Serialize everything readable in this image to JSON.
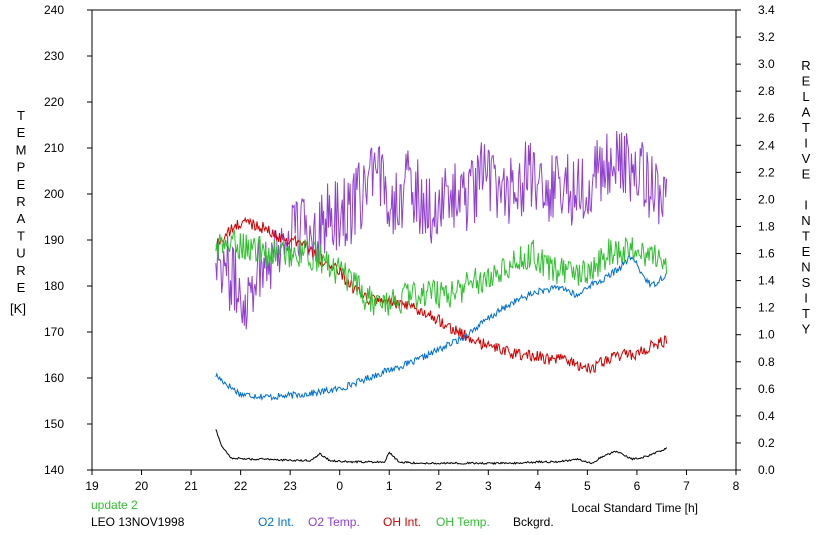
{
  "chart_data": {
    "type": "line",
    "left_axis_label": "TEMPERATURE",
    "left_axis_unit": "[K]",
    "right_axis_label": "RELATIVE INTENSITY",
    "xlabel": "Local Standard Time [h]",
    "x_ticks": [
      "19",
      "20",
      "21",
      "22",
      "23",
      "0",
      "1",
      "2",
      "3",
      "4",
      "5",
      "6",
      "7",
      "8"
    ],
    "y_left_ticks": [
      "140",
      "150",
      "160",
      "170",
      "180",
      "190",
      "200",
      "210",
      "220",
      "230",
      "240"
    ],
    "y_right_ticks": [
      "0.0",
      "0.2",
      "0.4",
      "0.6",
      "0.8",
      "1.0",
      "1.2",
      "1.4",
      "1.6",
      "1.8",
      "2.0",
      "2.2",
      "2.4",
      "2.6",
      "2.8",
      "3.0",
      "3.2",
      "3.4"
    ],
    "xlim": [
      19,
      32
    ],
    "ylim_left": [
      140,
      240
    ],
    "ylim_right": [
      0,
      3.4
    ],
    "grid": false,
    "update_note": "update 2",
    "station": "LEO 13NOV1998",
    "series": [
      {
        "name": "O2 Int.",
        "axis": "right",
        "color": "#0070d0",
        "x": [
          21.5,
          21.7,
          22.0,
          22.3,
          22.6,
          23.0,
          23.5,
          24.0,
          24.5,
          25.0,
          25.5,
          26.0,
          26.5,
          27.0,
          27.5,
          28.0,
          28.5,
          28.8,
          29.0,
          29.3,
          29.6,
          29.9,
          30.1,
          30.3,
          30.6
        ],
        "y": [
          0.7,
          0.64,
          0.56,
          0.55,
          0.54,
          0.55,
          0.57,
          0.6,
          0.67,
          0.74,
          0.8,
          0.89,
          0.98,
          1.12,
          1.24,
          1.32,
          1.35,
          1.28,
          1.36,
          1.4,
          1.48,
          1.58,
          1.45,
          1.36,
          1.45
        ]
      },
      {
        "name": "O2 Temp.",
        "axis": "left",
        "color": "#9040d0",
        "x": [
          21.5,
          21.7,
          21.9,
          22.1,
          22.3,
          22.6,
          22.9,
          23.1,
          23.4,
          23.7,
          24.0,
          24.3,
          24.5,
          24.8,
          25.1,
          25.4,
          25.7,
          26.0,
          26.3,
          26.6,
          26.9,
          27.2,
          27.5,
          27.8,
          28.1,
          28.4,
          28.7,
          29.0,
          29.3,
          29.6,
          29.9,
          30.2,
          30.5,
          30.6
        ],
        "y": [
          188,
          184,
          180,
          177,
          183,
          187,
          190,
          193,
          192,
          194,
          196,
          197,
          202,
          203,
          199,
          202,
          198,
          196,
          200,
          199,
          204,
          202,
          201,
          204,
          199,
          203,
          201,
          203,
          205,
          207,
          205,
          203,
          201,
          204
        ]
      },
      {
        "name": "OH Int.",
        "axis": "left",
        "color": "#d00000",
        "x": [
          21.5,
          21.7,
          21.9,
          22.1,
          22.4,
          22.7,
          23.0,
          23.3,
          23.6,
          24.0,
          24.3,
          24.6,
          24.9,
          25.2,
          25.5,
          25.8,
          26.1,
          26.4,
          26.7,
          27.0,
          27.3,
          27.6,
          27.9,
          28.2,
          28.5,
          28.8,
          29.1,
          29.4,
          29.7,
          30.0,
          30.3,
          30.6
        ],
        "y": [
          189,
          191,
          193,
          194,
          193,
          191,
          190,
          189,
          186,
          183,
          179,
          177,
          177,
          176,
          175,
          174,
          172,
          170,
          168,
          167,
          166,
          165,
          165,
          164,
          164,
          163,
          162,
          164,
          165,
          165,
          167,
          168
        ]
      },
      {
        "name": "OH Temp.",
        "axis": "left",
        "color": "#30c030",
        "x": [
          21.5,
          21.7,
          22.0,
          22.3,
          22.6,
          23.0,
          23.3,
          23.6,
          24.0,
          24.3,
          24.6,
          24.9,
          25.2,
          25.5,
          25.8,
          26.1,
          26.4,
          26.7,
          27.0,
          27.3,
          27.6,
          27.9,
          28.2,
          28.5,
          28.8,
          29.1,
          29.4,
          29.7,
          30.0,
          30.3,
          30.6
        ],
        "y": [
          188,
          189,
          189,
          188,
          187,
          187,
          187,
          186,
          183,
          180,
          177,
          176,
          177,
          178,
          179,
          178,
          179,
          181,
          182,
          184,
          186,
          187,
          184,
          183,
          182,
          184,
          187,
          188,
          188,
          187,
          185
        ]
      },
      {
        "name": "Bckgrd.",
        "axis": "right",
        "color": "#000000",
        "x": [
          21.5,
          21.6,
          21.8,
          22.2,
          22.6,
          23.0,
          23.4,
          23.6,
          23.8,
          24.2,
          24.6,
          24.9,
          25.0,
          25.2,
          25.6,
          26.0,
          26.4,
          26.8,
          27.2,
          27.6,
          28.0,
          28.4,
          28.8,
          29.1,
          29.3,
          29.6,
          29.9,
          30.2,
          30.4,
          30.6
        ],
        "y": [
          0.3,
          0.19,
          0.09,
          0.08,
          0.08,
          0.07,
          0.07,
          0.12,
          0.07,
          0.06,
          0.06,
          0.06,
          0.13,
          0.06,
          0.05,
          0.05,
          0.05,
          0.05,
          0.05,
          0.05,
          0.06,
          0.06,
          0.08,
          0.05,
          0.1,
          0.14,
          0.08,
          0.1,
          0.13,
          0.16
        ]
      }
    ]
  }
}
